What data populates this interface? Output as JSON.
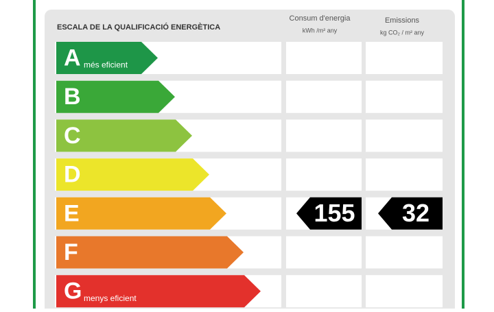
{
  "header": {
    "title": "ESCALA DE LA QUALIFICACIÓ ENERGÈTICA",
    "columns": [
      {
        "title": "Consum d'energia",
        "unit": "kWh /m² any"
      },
      {
        "title": "Emissions",
        "unit": "kg CO₂ / m² any"
      }
    ]
  },
  "rows": [
    {
      "letter": "A",
      "note": "més eficient",
      "color": "#1e9648"
    },
    {
      "letter": "B",
      "color": "#3aa838"
    },
    {
      "letter": "C",
      "color": "#8dc340"
    },
    {
      "letter": "D",
      "color": "#ece52a"
    },
    {
      "letter": "E",
      "color": "#f2a620",
      "consum": 155,
      "emissions": 32
    },
    {
      "letter": "F",
      "color": "#e8782b"
    },
    {
      "letter": "G",
      "note": "menys eficient",
      "color": "#e3312c"
    }
  ]
}
